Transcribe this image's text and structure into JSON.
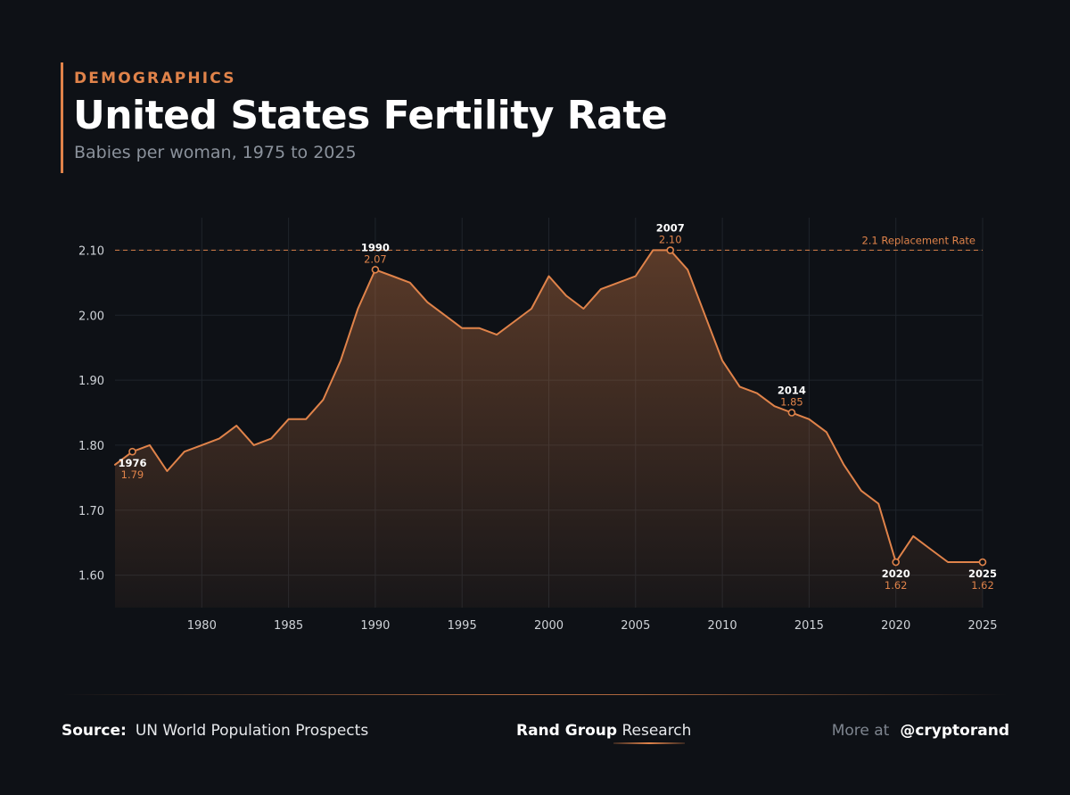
{
  "header": {
    "eyebrow": "DEMOGRAPHICS",
    "title": "United States Fertility Rate",
    "subtitle": "Babies per woman, 1975 to 2025"
  },
  "colors": {
    "background": "#0e1116",
    "accent": "#e0834a",
    "grid": "#1f242b",
    "axis_text": "#cfd3d8",
    "highlight_year": "#ffffff"
  },
  "chart_data": {
    "type": "area",
    "x": [
      1975,
      1976,
      1977,
      1978,
      1979,
      1980,
      1981,
      1982,
      1983,
      1984,
      1985,
      1986,
      1987,
      1988,
      1989,
      1990,
      1991,
      1992,
      1993,
      1994,
      1995,
      1996,
      1997,
      1998,
      1999,
      2000,
      2001,
      2002,
      2003,
      2004,
      2005,
      2006,
      2007,
      2008,
      2009,
      2010,
      2011,
      2012,
      2013,
      2014,
      2015,
      2016,
      2017,
      2018,
      2019,
      2020,
      2021,
      2022,
      2023,
      2024,
      2025
    ],
    "values": [
      1.77,
      1.79,
      1.8,
      1.76,
      1.79,
      1.8,
      1.81,
      1.83,
      1.8,
      1.81,
      1.84,
      1.84,
      1.87,
      1.93,
      2.01,
      2.07,
      2.06,
      2.05,
      2.02,
      2.0,
      1.98,
      1.98,
      1.97,
      1.99,
      2.01,
      2.06,
      2.03,
      2.01,
      2.04,
      2.05,
      2.06,
      2.1,
      2.1,
      2.07,
      2.0,
      1.93,
      1.89,
      1.88,
      1.86,
      1.85,
      1.84,
      1.82,
      1.77,
      1.73,
      1.71,
      1.62,
      1.66,
      1.64,
      1.62,
      1.62,
      1.62
    ],
    "xlim": [
      1975,
      2025
    ],
    "ylim": [
      1.55,
      2.15
    ],
    "x_ticks": [
      1980,
      1985,
      1990,
      1995,
      2000,
      2005,
      2010,
      2015,
      2020,
      2025
    ],
    "y_ticks": [
      1.6,
      1.7,
      1.8,
      1.9,
      2.0,
      2.1
    ],
    "y_tick_labels": [
      "1.60",
      "1.70",
      "1.80",
      "1.90",
      "2.00",
      "2.10"
    ],
    "grid": true,
    "reference_line": {
      "value": 2.1,
      "label": "2.1 Replacement Rate"
    },
    "annotations": [
      {
        "year": 1976,
        "year_label": "1976",
        "value_label": "1.79",
        "placement": "below"
      },
      {
        "year": 1990,
        "year_label": "1990",
        "value_label": "2.07",
        "placement": "above"
      },
      {
        "year": 2007,
        "year_label": "2007",
        "value_label": "2.10",
        "placement": "above"
      },
      {
        "year": 2014,
        "year_label": "2014",
        "value_label": "1.85",
        "placement": "above"
      },
      {
        "year": 2020,
        "year_label": "2020",
        "value_label": "1.62",
        "placement": "below"
      },
      {
        "year": 2025,
        "year_label": "2025",
        "value_label": "1.62",
        "placement": "below"
      }
    ]
  },
  "footer": {
    "source_label": "Source:",
    "source_text": "UN World Population Prospects",
    "brand_bold": "Rand Group",
    "brand_regular": "Research",
    "more_label": "More at",
    "handle": "@cryptorand"
  }
}
